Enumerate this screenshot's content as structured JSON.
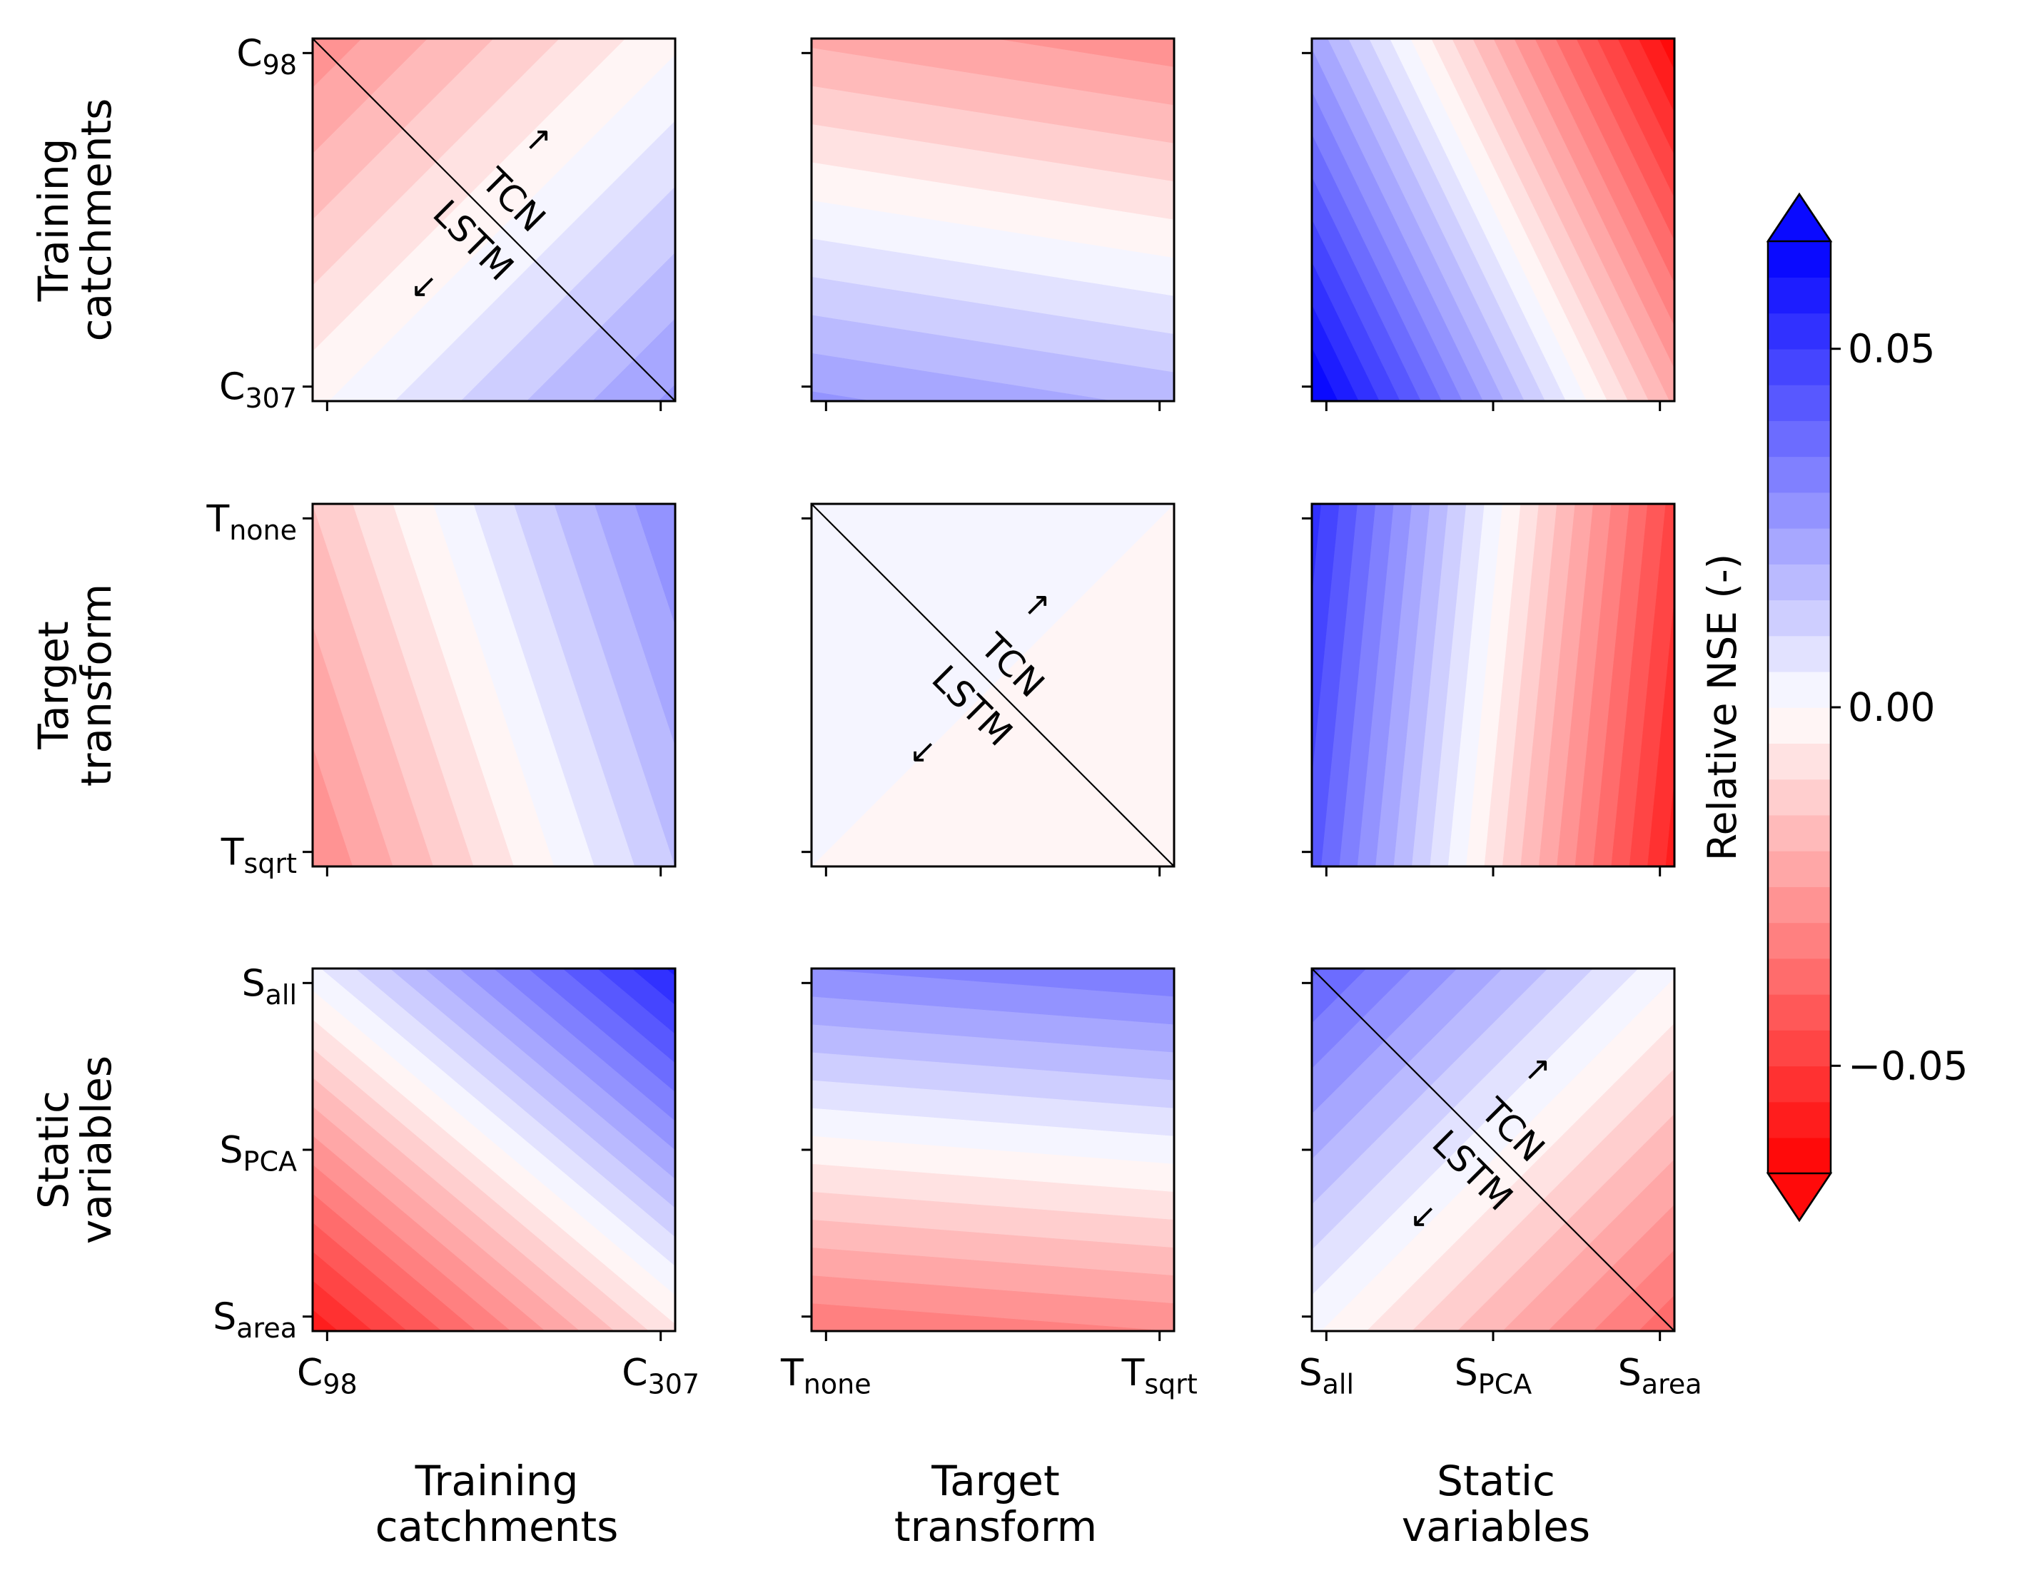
{
  "chart_data": {
    "type": "heatmap",
    "layout": "3x3 pairwise factor-interaction grid",
    "factors": [
      {
        "id": "C",
        "label": "Training\ncatchments",
        "ticks": [
          {
            "base": "C",
            "sub": "98"
          },
          {
            "base": "C",
            "sub": "307"
          }
        ]
      },
      {
        "id": "T",
        "label": "Target\ntransform",
        "ticks": [
          {
            "base": "T",
            "sub": "none"
          },
          {
            "base": "T",
            "sub": "sqrt"
          }
        ]
      },
      {
        "id": "S",
        "label": "Static\nvariables",
        "ticks": [
          {
            "base": "S",
            "sub": "all"
          },
          {
            "base": "S",
            "sub": "PCA"
          },
          {
            "base": "S",
            "sub": "area"
          }
        ]
      }
    ],
    "value_range": [
      -0.065,
      0.065
    ],
    "color_levels": 26,
    "colormap": "bwr_r",
    "colors": {
      "low": "#ff0000",
      "mid": "#ffffff",
      "high": "#0000ff"
    },
    "panels": [
      {
        "row": 0,
        "col": 0,
        "corners": {
          "tl": -0.03,
          "tr": 0.0,
          "bl": 0.0,
          "br": 0.025
        },
        "diagonal": true,
        "annotation": {
          "upper": "TCN",
          "lower": "LSTM"
        }
      },
      {
        "row": 0,
        "col": 1,
        "corners": {
          "tl": -0.02,
          "tr": -0.03,
          "bl": 0.025,
          "br": 0.02
        },
        "diagonal": false
      },
      {
        "row": 0,
        "col": 2,
        "corners": {
          "tl": 0.025,
          "tr": -0.065,
          "bl": 0.065,
          "br": -0.02
        },
        "diagonal": false
      },
      {
        "row": 1,
        "col": 0,
        "corners": {
          "tl": -0.015,
          "tr": 0.03,
          "bl": -0.03,
          "br": 0.015
        },
        "diagonal": false
      },
      {
        "row": 1,
        "col": 1,
        "corners": {
          "tl": 0.004,
          "tr": 0.0,
          "bl": 0.0,
          "br": -0.004
        },
        "diagonal": true,
        "annotation": {
          "upper": "TCN",
          "lower": "LSTM"
        }
      },
      {
        "row": 1,
        "col": 2,
        "corners": {
          "tl": 0.05,
          "tr": -0.045,
          "bl": 0.045,
          "br": -0.06
        },
        "diagonal": false
      },
      {
        "row": 2,
        "col": 0,
        "corners": {
          "tl": 0.005,
          "tr": 0.055,
          "bl": -0.06,
          "br": -0.005
        },
        "diagonal": false
      },
      {
        "row": 2,
        "col": 1,
        "corners": {
          "tl": 0.03,
          "tr": 0.035,
          "bl": -0.035,
          "br": -0.03
        },
        "diagonal": false
      },
      {
        "row": 2,
        "col": 2,
        "corners": {
          "tl": 0.04,
          "tr": 0.002,
          "bl": 0.002,
          "br": -0.04
        },
        "diagonal": true,
        "annotation": {
          "upper": "TCN",
          "lower": "LSTM"
        }
      }
    ],
    "colorbar": {
      "label": "Relative NSE (-)",
      "ticks": [
        0.05,
        0.0,
        -0.05
      ],
      "tick_labels": [
        "0.05",
        "0.00",
        "−0.05"
      ],
      "extend": "both"
    },
    "arrows": {
      "up": "↗",
      "down": "↙"
    }
  }
}
